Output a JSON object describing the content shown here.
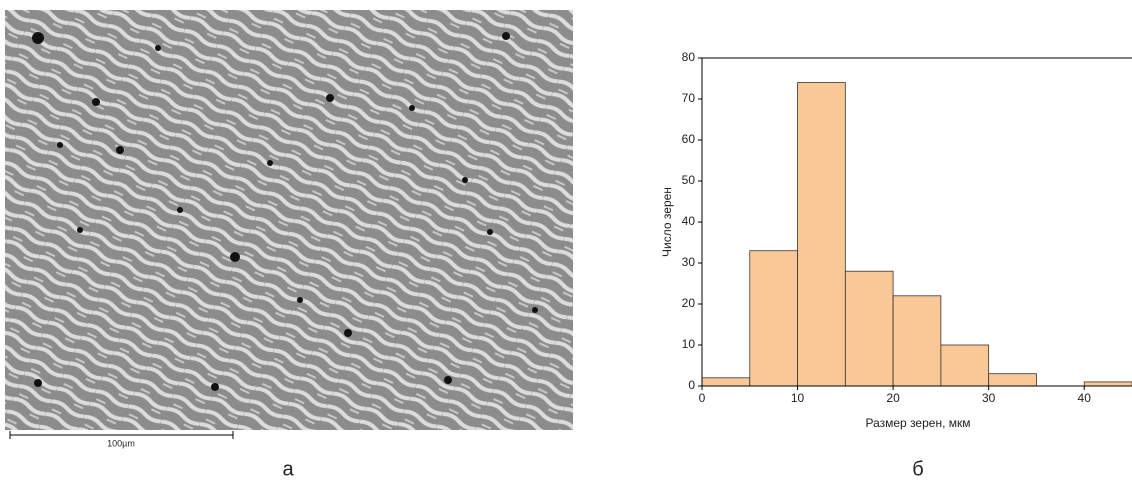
{
  "figure": {
    "image_scale_bar": "100µm",
    "image_label": "а",
    "chart_label": "б"
  },
  "chart_data": {
    "type": "histogram",
    "xlabel": "Размер зерен, мкм",
    "ylabel": "Число зерен",
    "bins": [
      0,
      5,
      10,
      15,
      20,
      25,
      30,
      35,
      40,
      45
    ],
    "values": [
      2,
      33,
      74,
      28,
      22,
      10,
      3,
      0,
      1
    ],
    "color": "#f9c896",
    "xlim": [
      0,
      45
    ],
    "ylim": [
      0,
      80
    ],
    "xticks": [
      0,
      10,
      20,
      30,
      40
    ],
    "yticks": [
      0,
      10,
      20,
      30,
      40,
      50,
      60,
      70,
      80
    ]
  }
}
